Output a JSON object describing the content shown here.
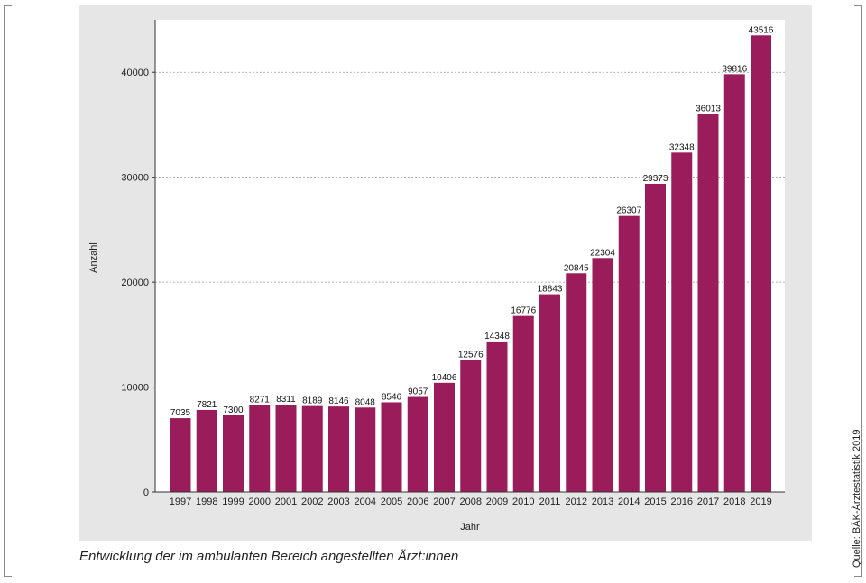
{
  "caption": "Entwicklung der im ambulanten Bereich angestellten Ärzt:innen",
  "source": "Quelle: BÄK-Ärztestatistik 2019",
  "chart_data": {
    "type": "bar",
    "xlabel": "Jahr",
    "ylabel": "Anzahl",
    "ylim": [
      0,
      45000
    ],
    "yticks": [
      0,
      10000,
      20000,
      30000,
      40000
    ],
    "grid": true,
    "bar_color": "#9b1c5a",
    "categories": [
      "1997",
      "1998",
      "1999",
      "2000",
      "2001",
      "2002",
      "2003",
      "2004",
      "2005",
      "2006",
      "2007",
      "2008",
      "2009",
      "2010",
      "2011",
      "2012",
      "2013",
      "2014",
      "2015",
      "2016",
      "2017",
      "2018",
      "2019"
    ],
    "values": [
      7035,
      7821,
      7300,
      8271,
      8311,
      8189,
      8146,
      8048,
      8546,
      9057,
      10406,
      12576,
      14348,
      16776,
      18843,
      20845,
      22304,
      26307,
      29373,
      32348,
      36013,
      39816,
      43516
    ]
  }
}
